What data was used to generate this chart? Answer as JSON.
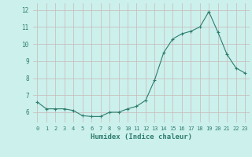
{
  "x": [
    0,
    1,
    2,
    3,
    4,
    5,
    6,
    7,
    8,
    9,
    10,
    11,
    12,
    13,
    14,
    15,
    16,
    17,
    18,
    19,
    20,
    21,
    22,
    23
  ],
  "y": [
    6.6,
    6.2,
    6.2,
    6.2,
    6.1,
    5.8,
    5.75,
    5.75,
    6.0,
    6.0,
    6.2,
    6.35,
    6.7,
    7.9,
    9.5,
    10.3,
    10.6,
    10.75,
    11.0,
    11.9,
    10.7,
    9.4,
    8.6,
    8.3
  ],
  "line_color": "#2E7D6E",
  "marker": "+",
  "marker_size": 3,
  "bg_color": "#CCF0EC",
  "grid_color": "#C8B8B8",
  "xlabel": "Humidex (Indice chaleur)",
  "xlim": [
    -0.5,
    23.5
  ],
  "ylim": [
    5.4,
    12.4
  ],
  "yticks": [
    6,
    7,
    8,
    9,
    10,
    11,
    12
  ],
  "xticks": [
    0,
    1,
    2,
    3,
    4,
    5,
    6,
    7,
    8,
    9,
    10,
    11,
    12,
    13,
    14,
    15,
    16,
    17,
    18,
    19,
    20,
    21,
    22,
    23
  ]
}
